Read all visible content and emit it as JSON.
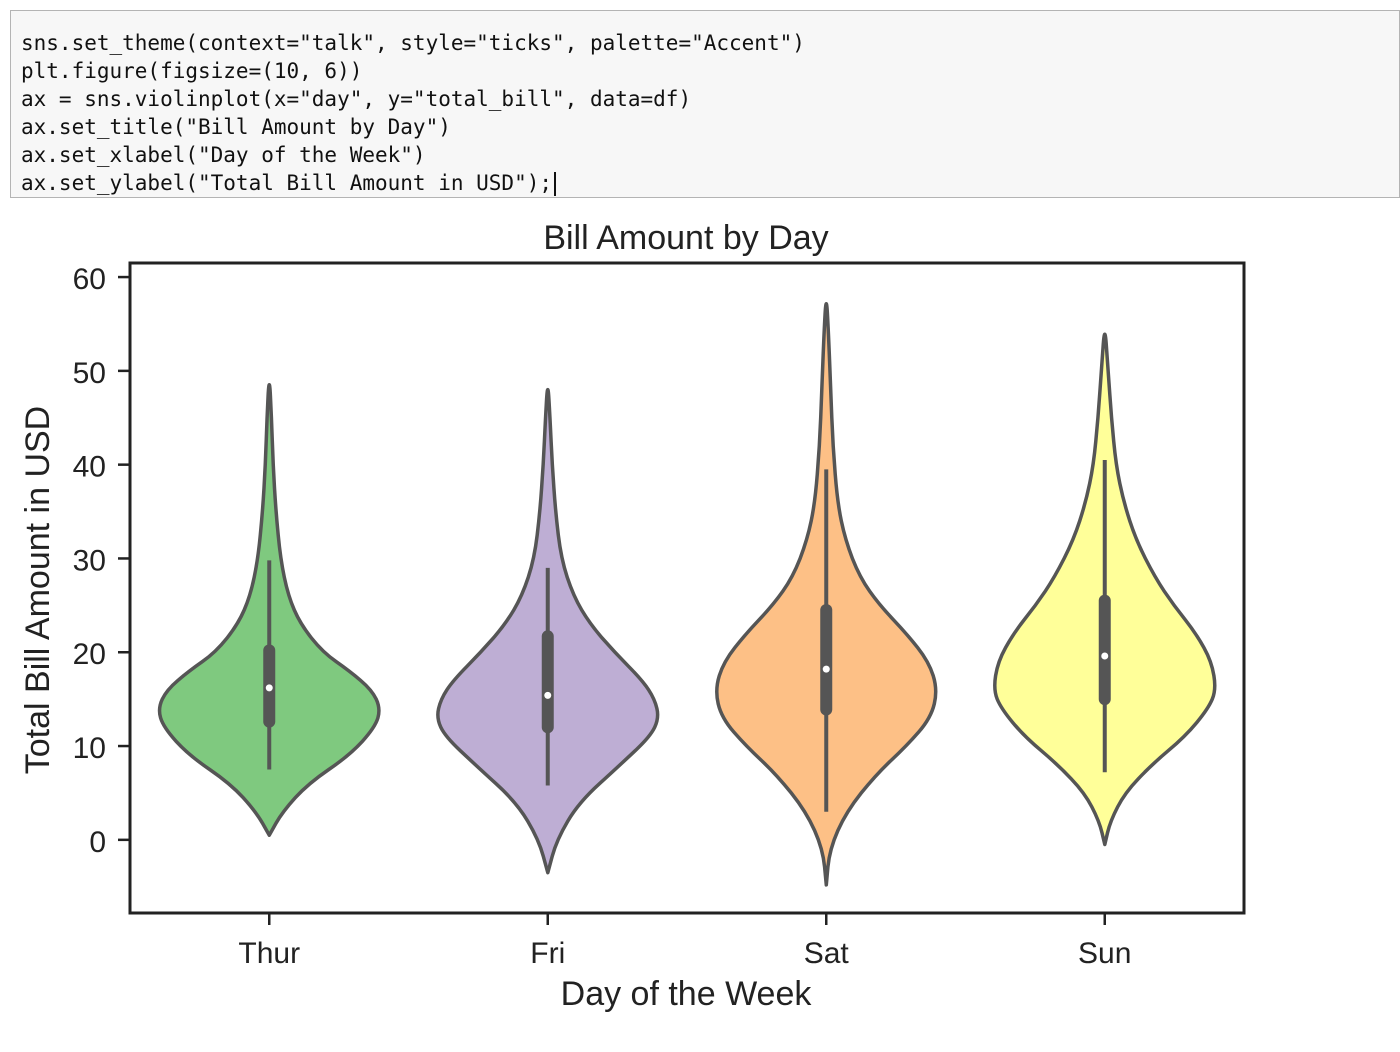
{
  "code_cell": {
    "lines": [
      "sns.set_theme(context=\"talk\", style=\"ticks\", palette=\"Accent\")",
      "plt.figure(figsize=(10, 6))",
      "ax = sns.violinplot(x=\"day\", y=\"total_bill\", data=df)",
      "ax.set_title(\"Bill Amount by Day\")",
      "ax.set_xlabel(\"Day of the Week\")",
      "ax.set_ylabel(\"Total Bill Amount in USD\");"
    ]
  },
  "chart_data": {
    "type": "violin",
    "title": "Bill Amount by Day",
    "xlabel": "Day of the Week",
    "ylabel": "Total Bill Amount in USD",
    "categories": [
      "Thur",
      "Fri",
      "Sat",
      "Sun"
    ],
    "yticks": [
      0,
      10,
      20,
      30,
      40,
      50,
      60
    ],
    "ylim": [
      -7.8,
      61.5
    ],
    "grid": false,
    "colors": [
      "#7fc97f",
      "#beaed4",
      "#fdc086",
      "#ffff99"
    ],
    "outline_color": "#555555",
    "violins": [
      {
        "category": "Thur",
        "kde_min": 0.5,
        "kde_max": 49.7,
        "whisker_low": 7.5,
        "whisker_high": 29.8,
        "q1": 12.6,
        "median": 16.2,
        "q3": 20.2,
        "profile": [
          [
            0.5,
            0.0
          ],
          [
            3,
            0.12
          ],
          [
            6,
            0.35
          ],
          [
            9,
            0.72
          ],
          [
            12,
            0.95
          ],
          [
            14,
            1.0
          ],
          [
            16,
            0.92
          ],
          [
            18,
            0.72
          ],
          [
            20,
            0.48
          ],
          [
            23,
            0.28
          ],
          [
            26,
            0.17
          ],
          [
            30,
            0.1
          ],
          [
            35,
            0.06
          ],
          [
            40,
            0.035
          ],
          [
            45,
            0.02
          ],
          [
            49.7,
            0.0
          ]
        ]
      },
      {
        "category": "Fri",
        "kde_min": -3.5,
        "kde_max": 49.0,
        "whisker_low": 5.8,
        "whisker_high": 29.0,
        "q1": 12.0,
        "median": 15.4,
        "q3": 21.7,
        "profile": [
          [
            -3.5,
            0.0
          ],
          [
            0,
            0.08
          ],
          [
            4,
            0.28
          ],
          [
            8,
            0.65
          ],
          [
            11,
            0.92
          ],
          [
            13,
            1.0
          ],
          [
            15,
            0.96
          ],
          [
            17,
            0.85
          ],
          [
            20,
            0.6
          ],
          [
            23,
            0.38
          ],
          [
            26,
            0.23
          ],
          [
            30,
            0.12
          ],
          [
            35,
            0.07
          ],
          [
            40,
            0.04
          ],
          [
            45,
            0.02
          ],
          [
            49,
            0.0
          ]
        ]
      },
      {
        "category": "Sat",
        "kde_min": -4.8,
        "kde_max": 58.2,
        "whisker_low": 3.0,
        "whisker_high": 39.5,
        "q1": 13.9,
        "median": 18.2,
        "q3": 24.5,
        "profile": [
          [
            -4.8,
            0.0
          ],
          [
            -1,
            0.03
          ],
          [
            3,
            0.18
          ],
          [
            7,
            0.45
          ],
          [
            10,
            0.72
          ],
          [
            13,
            0.94
          ],
          [
            16,
            1.0
          ],
          [
            19,
            0.92
          ],
          [
            22,
            0.72
          ],
          [
            25,
            0.48
          ],
          [
            28,
            0.3
          ],
          [
            32,
            0.17
          ],
          [
            36,
            0.1
          ],
          [
            42,
            0.06
          ],
          [
            48,
            0.04
          ],
          [
            54,
            0.02
          ],
          [
            58.2,
            0.0
          ]
        ]
      },
      {
        "category": "Sun",
        "kde_min": -0.5,
        "kde_max": 55.2,
        "whisker_low": 7.2,
        "whisker_high": 40.5,
        "q1": 15.0,
        "median": 19.6,
        "q3": 25.5,
        "profile": [
          [
            -0.5,
            0.0
          ],
          [
            2,
            0.05
          ],
          [
            5,
            0.18
          ],
          [
            8,
            0.42
          ],
          [
            11,
            0.72
          ],
          [
            14,
            0.93
          ],
          [
            16,
            1.0
          ],
          [
            19,
            0.96
          ],
          [
            22,
            0.82
          ],
          [
            25,
            0.62
          ],
          [
            28,
            0.45
          ],
          [
            32,
            0.28
          ],
          [
            36,
            0.17
          ],
          [
            40,
            0.1
          ],
          [
            45,
            0.06
          ],
          [
            50,
            0.03
          ],
          [
            55.2,
            0.0
          ]
        ]
      }
    ]
  }
}
